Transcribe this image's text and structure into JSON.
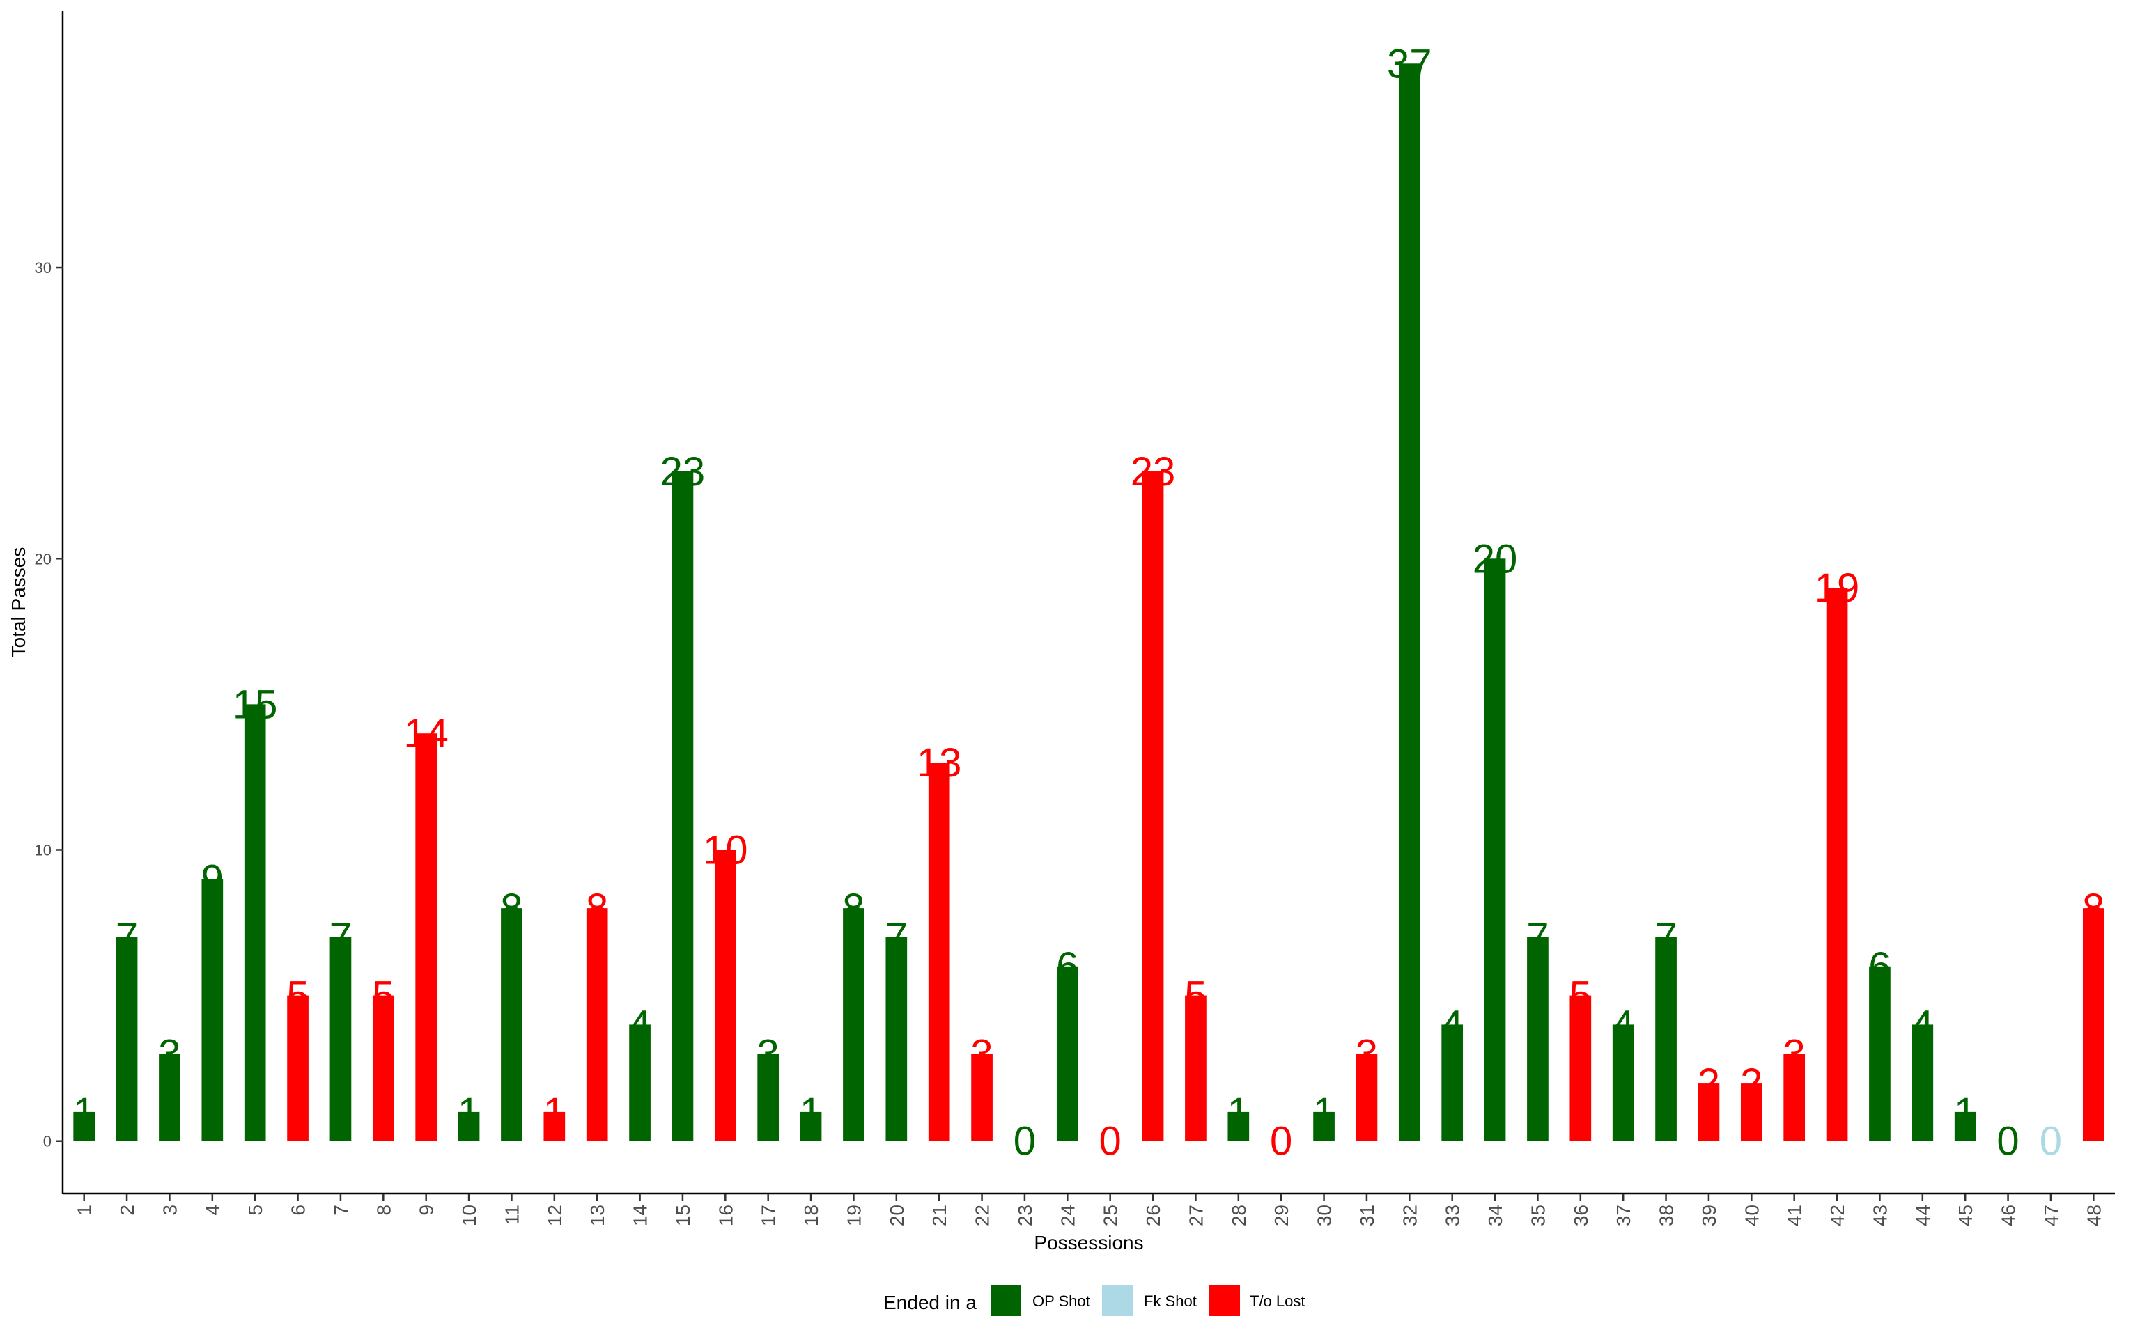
{
  "chart_data": {
    "type": "bar",
    "xlabel": "Possessions",
    "ylabel": "Total Passes",
    "ylim": [
      -1.8,
      38.8
    ],
    "yticks": [
      0,
      10,
      20,
      30
    ],
    "grid": false,
    "legend": {
      "title": "Ended in a",
      "placement": "bottom",
      "entries": [
        {
          "key": "op",
          "label": "OP Shot",
          "color": "#006400"
        },
        {
          "key": "fk",
          "label": "Fk Shot",
          "color": "#ADD8E6"
        },
        {
          "key": "to",
          "label": "T/o Lost",
          "color": "#FF0000"
        }
      ]
    },
    "categories": [
      "1",
      "2",
      "3",
      "4",
      "5",
      "6",
      "7",
      "8",
      "9",
      "10",
      "11",
      "12",
      "13",
      "14",
      "15",
      "16",
      "17",
      "18",
      "19",
      "20",
      "21",
      "22",
      "23",
      "24",
      "25",
      "26",
      "27",
      "28",
      "29",
      "30",
      "31",
      "32",
      "33",
      "34",
      "35",
      "36",
      "37",
      "38",
      "39",
      "40",
      "41",
      "42",
      "43",
      "44",
      "45",
      "46",
      "47",
      "48"
    ],
    "values": [
      1,
      7,
      3,
      9,
      15,
      5,
      7,
      5,
      14,
      1,
      8,
      1,
      8,
      4,
      23,
      10,
      3,
      1,
      8,
      7,
      13,
      3,
      0,
      6,
      0,
      23,
      5,
      1,
      0,
      1,
      3,
      37,
      4,
      20,
      7,
      5,
      4,
      7,
      2,
      2,
      3,
      19,
      6,
      4,
      1,
      0,
      0,
      8
    ],
    "outcome": [
      "op",
      "op",
      "op",
      "op",
      "op",
      "to",
      "op",
      "to",
      "to",
      "op",
      "op",
      "to",
      "to",
      "op",
      "op",
      "to",
      "op",
      "op",
      "op",
      "op",
      "to",
      "to",
      "op",
      "op",
      "to",
      "to",
      "to",
      "op",
      "to",
      "op",
      "to",
      "op",
      "op",
      "op",
      "op",
      "to",
      "op",
      "op",
      "to",
      "to",
      "to",
      "to",
      "op",
      "op",
      "op",
      "op",
      "fk",
      "to"
    ]
  }
}
